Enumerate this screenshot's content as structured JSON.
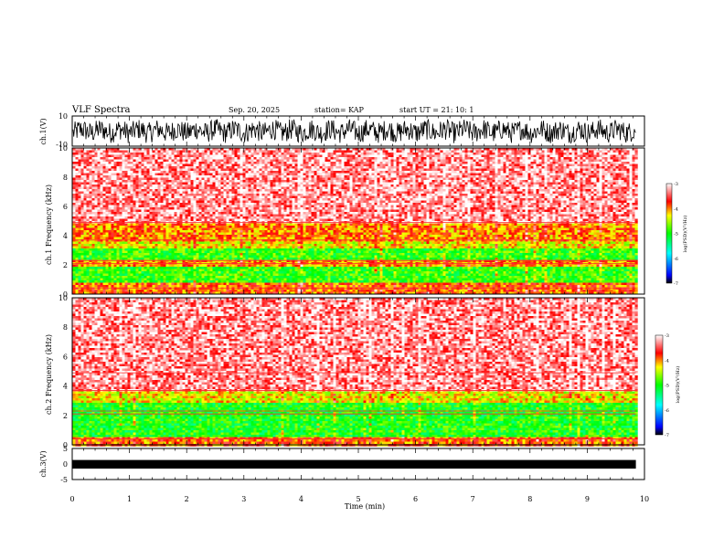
{
  "header": {
    "title": "VLF Spectra",
    "date": "Sep. 20, 2025",
    "station": "station= KAP",
    "start_ut": "start  UT =   21: 10: 1"
  },
  "chart_data": [
    {
      "type": "line",
      "panel": "ch1-waveform",
      "title": "",
      "xlabel": "",
      "ylabel": "ch.1(V)",
      "xlim": [
        0,
        10
      ],
      "ylim": [
        -10,
        10
      ],
      "yticks": [
        "10",
        "-10"
      ],
      "data_extent_min": 9.85,
      "envelope": [
        -7,
        7
      ]
    },
    {
      "type": "heatmap",
      "panel": "ch1-spectrogram",
      "ylabel": "ch.1 Frequency (kHz)",
      "xlim": [
        0,
        10
      ],
      "ylim": [
        0,
        10
      ],
      "yticks": [
        "0",
        "2",
        "4",
        "6",
        "8",
        "10"
      ],
      "data_extent_min": 9.85,
      "bands": [
        {
          "f0": 0.0,
          "f1": 0.9,
          "level": -3.9
        },
        {
          "f0": 0.9,
          "f1": 2.0,
          "level": -4.9
        },
        {
          "f0": 2.0,
          "f1": 2.4,
          "level": -4.0
        },
        {
          "f0": 2.4,
          "f1": 3.2,
          "level": -4.9
        },
        {
          "f0": 3.2,
          "f1": 3.6,
          "level": -4.3
        },
        {
          "f0": 3.6,
          "f1": 4.9,
          "level": -4.0
        },
        {
          "f0": 4.9,
          "f1": 10.0,
          "level": -3.3
        }
      ],
      "colorbar": {
        "label": "log(PSD)(V²/Hz)",
        "range": [
          -7,
          -3
        ],
        "ticks": [
          "-3",
          "-4",
          "-5",
          "-6",
          "-7"
        ]
      }
    },
    {
      "type": "heatmap",
      "panel": "ch2-spectrogram",
      "ylabel": "ch.2 Frequency (kHz)",
      "xlim": [
        0,
        10
      ],
      "ylim": [
        0,
        10
      ],
      "yticks": [
        "0",
        "2",
        "4",
        "6",
        "8",
        "10"
      ],
      "data_extent_min": 9.85,
      "bands": [
        {
          "f0": 0.0,
          "f1": 0.6,
          "level": -3.9
        },
        {
          "f0": 0.6,
          "f1": 3.0,
          "level": -5.0
        },
        {
          "f0": 3.0,
          "f1": 3.7,
          "level": -4.3
        },
        {
          "f0": 3.7,
          "f1": 10.0,
          "level": -3.3
        }
      ],
      "colorbar": {
        "label": "log(PSD)(V²/Hz)",
        "range": [
          -7,
          -3
        ],
        "ticks": [
          "-3",
          "-4",
          "-5",
          "-6",
          "-7"
        ]
      }
    },
    {
      "type": "line",
      "panel": "ch3-waveform",
      "ylabel": "ch.3(V)",
      "xlabel": "Time  (min)",
      "xlim": [
        0,
        10
      ],
      "ylim": [
        -5,
        5
      ],
      "yticks": [
        "5",
        "0",
        "-5"
      ],
      "data_extent_min": 9.85,
      "band": [
        0.3,
        1.3
      ]
    }
  ],
  "xaxis": {
    "ticks": [
      "0",
      "1",
      "2",
      "3",
      "4",
      "5",
      "6",
      "7",
      "8",
      "9",
      "10"
    ],
    "label": "Time  (min)"
  }
}
